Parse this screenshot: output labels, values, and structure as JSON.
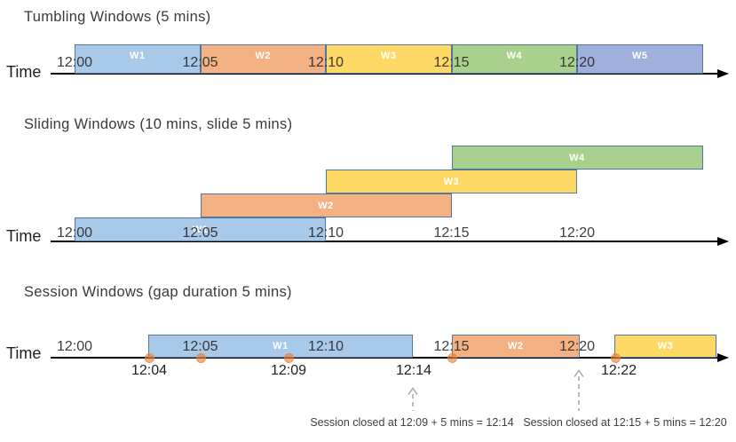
{
  "colors": {
    "window_border": "#52779F",
    "axis": "#000000",
    "title_text": "#3A3A3A",
    "tick_text": "#282828",
    "event_label_text": "#1F1F1F",
    "annotation_text": "#3F3F3F",
    "dashed_arrow": "#A6A6A6",
    "event_dot": "#ED7D31",
    "window_fills": {
      "blue": "#A9C9E9",
      "orange": "#F4B183",
      "yellow": "#FFD966",
      "green": "#A9D18E",
      "indigo": "#9FB0DC"
    }
  },
  "sections": [
    {
      "id": "tumbling",
      "title": "Tumbling Windows (5 mins)",
      "axis_label": "Time",
      "ticks": [
        "12:00",
        "12:05",
        "12:10",
        "12:15",
        "12:20"
      ],
      "windows": [
        {
          "label": "W1",
          "color": "blue"
        },
        {
          "label": "W2",
          "color": "orange"
        },
        {
          "label": "W3",
          "color": "yellow"
        },
        {
          "label": "W4",
          "color": "green"
        },
        {
          "label": "W5",
          "color": "indigo"
        }
      ]
    },
    {
      "id": "sliding",
      "title": "Sliding Windows (10 mins, slide 5 mins)",
      "axis_label": "Time",
      "ticks": [
        "12:00",
        "12:05",
        "12:10",
        "12:15",
        "12:20"
      ],
      "windows": [
        {
          "label": "W1",
          "color": "blue"
        },
        {
          "label": "W2",
          "color": "orange"
        },
        {
          "label": "W3",
          "color": "yellow"
        },
        {
          "label": "W4",
          "color": "green"
        }
      ]
    },
    {
      "id": "session",
      "title": "Session Windows (gap duration 5 mins)",
      "axis_label": "Time",
      "ticks": [
        "12:00",
        "12:05",
        "12:10",
        "12:15",
        "12:20"
      ],
      "windows": [
        {
          "label": "W1",
          "color": "blue"
        },
        {
          "label": "W2",
          "color": "orange"
        },
        {
          "label": "W3",
          "color": "yellow"
        }
      ],
      "event_labels": [
        "12:04",
        "12:09",
        "12:14",
        "12:22"
      ],
      "annotations": [
        "Session closed at 12:09 + 5 mins = 12:14",
        "Session closed at 12:15 + 5 mins = 12:20"
      ]
    }
  ]
}
